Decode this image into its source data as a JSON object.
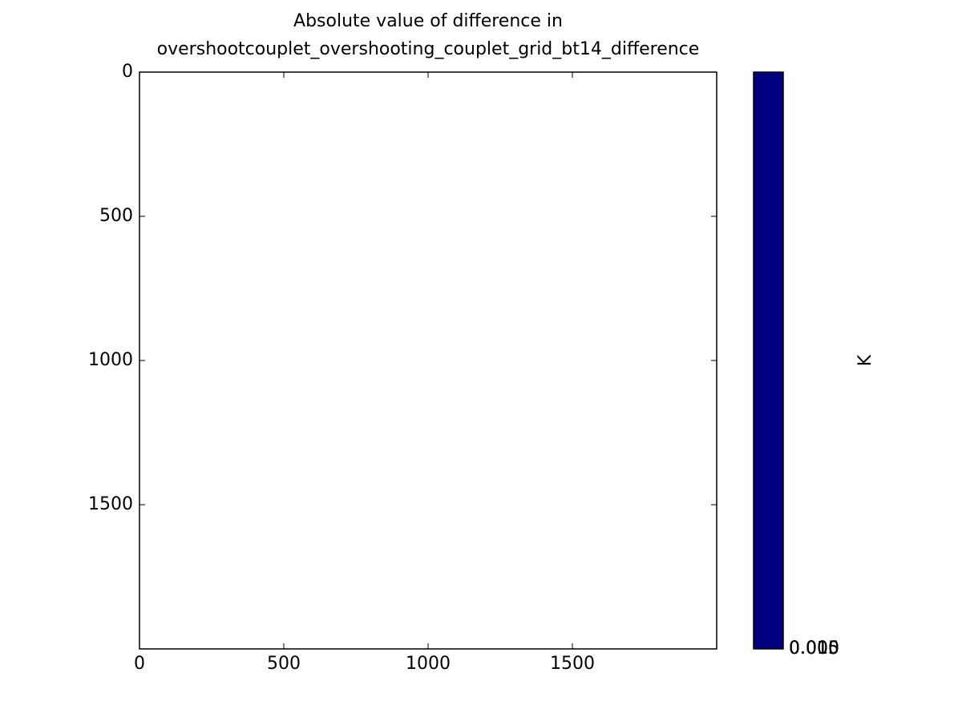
{
  "chart_data": {
    "type": "heatmap",
    "title": [
      "Absolute value of difference in",
      "overshootcouplet_overshooting_couplet_grid_bt14_difference"
    ],
    "xlim": [
      0,
      2000
    ],
    "ylim": [
      2000,
      0
    ],
    "xticks": [
      0,
      500,
      1000,
      1500
    ],
    "yticks": [
      0,
      500,
      1000,
      1500
    ],
    "image_color": "#ffffff",
    "colorbar": {
      "label": "K",
      "color": "#000080",
      "tick_labels": [
        "0.000",
        "0.005",
        "0.010",
        "0.015"
      ]
    }
  }
}
